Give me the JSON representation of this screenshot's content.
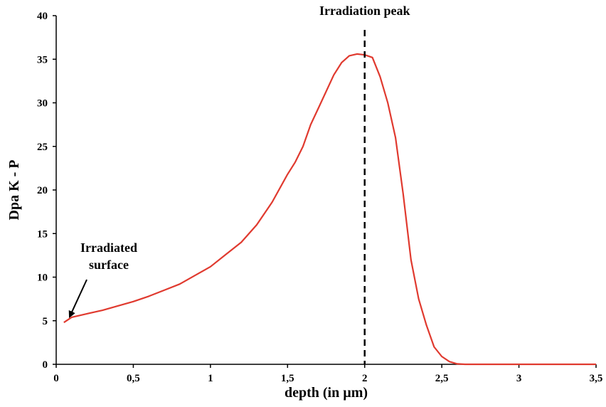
{
  "chart_data": {
    "type": "line",
    "title": "",
    "xlabel": "depth (in µm)",
    "ylabel": "Dpa K - P",
    "xlim": [
      0,
      3.5
    ],
    "ylim": [
      0,
      40
    ],
    "x_ticks": [
      0,
      0.5,
      1,
      1.5,
      2,
      2.5,
      3,
      3.5
    ],
    "x_tick_labels": [
      "0",
      "0,5",
      "1",
      "1,5",
      "2",
      "2,5",
      "3",
      "3,5"
    ],
    "y_ticks": [
      0,
      5,
      10,
      15,
      20,
      25,
      30,
      35,
      40
    ],
    "y_tick_labels": [
      "0",
      "5",
      "10",
      "15",
      "20",
      "25",
      "30",
      "35",
      "40"
    ],
    "grid": false,
    "series_color": "#e03a2f",
    "series": [
      {
        "x": [
          0.05,
          0.1,
          0.2,
          0.3,
          0.4,
          0.5,
          0.6,
          0.7,
          0.8,
          0.9,
          1.0,
          1.1,
          1.2,
          1.3,
          1.4,
          1.5,
          1.55,
          1.6,
          1.65,
          1.7,
          1.8,
          1.85,
          1.9,
          1.95,
          2.0,
          2.05,
          2.1,
          2.15,
          2.2,
          2.25,
          2.3,
          2.35,
          2.4,
          2.45,
          2.5,
          2.55,
          2.6,
          2.65,
          2.7,
          3.0,
          3.5
        ],
        "y": [
          4.8,
          5.4,
          5.8,
          6.2,
          6.7,
          7.2,
          7.8,
          8.5,
          9.2,
          10.2,
          11.2,
          12.6,
          14.0,
          16.0,
          18.6,
          21.8,
          23.2,
          25.0,
          27.5,
          29.4,
          33.2,
          34.6,
          35.4,
          35.6,
          35.5,
          35.2,
          33.0,
          30.0,
          26.0,
          19.5,
          12.0,
          7.5,
          4.5,
          2.0,
          0.9,
          0.3,
          0.05,
          0,
          0,
          0,
          0
        ]
      }
    ],
    "vline": {
      "x": 2,
      "label": "Irradiation peak",
      "style": "dashed",
      "color": "#000000"
    },
    "annotations": [
      {
        "lines": [
          "Irradiated",
          "surface"
        ],
        "arrow_to": {
          "x": 0.08,
          "y": 5.2
        }
      }
    ]
  }
}
